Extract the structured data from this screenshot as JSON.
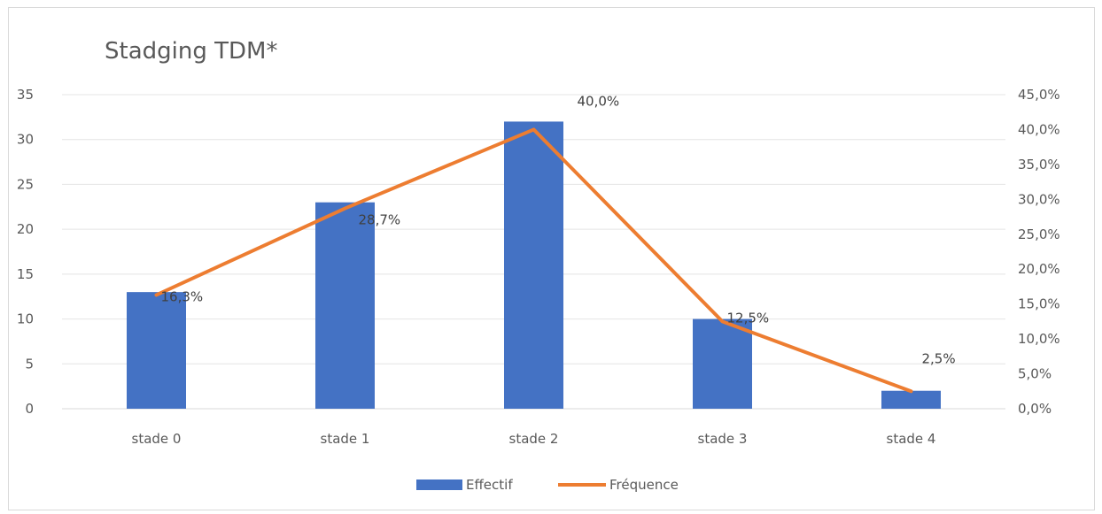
{
  "chart_data": {
    "type": "bar",
    "title": "Stadging TDM*",
    "categories": [
      "stade 0",
      "stade 1",
      "stade 2",
      "stade 3",
      "stade 4"
    ],
    "series": [
      {
        "name": "Effectif",
        "type": "bar",
        "axis": "left",
        "color": "#4472c4",
        "values": [
          13,
          23,
          32,
          10,
          2
        ]
      },
      {
        "name": "Fréquence",
        "type": "line",
        "axis": "right",
        "color": "#ed7d31",
        "values": [
          16.3,
          28.7,
          40.0,
          12.5,
          2.5
        ],
        "labels": [
          "16,3%",
          "28,7%",
          "40,0%",
          "12,5%",
          "2,5%"
        ]
      }
    ],
    "y_left": {
      "min": 0,
      "max": 35,
      "step": 5,
      "ticks": [
        "0",
        "5",
        "10",
        "15",
        "20",
        "25",
        "30",
        "35"
      ]
    },
    "y_right": {
      "min": 0,
      "max": 45,
      "step": 5,
      "ticks": [
        "0,0%",
        "5,0%",
        "10,0%",
        "15,0%",
        "20,0%",
        "25,0%",
        "30,0%",
        "35,0%",
        "40,0%",
        "45,0%"
      ]
    },
    "grid": true,
    "legend": "bottom"
  }
}
